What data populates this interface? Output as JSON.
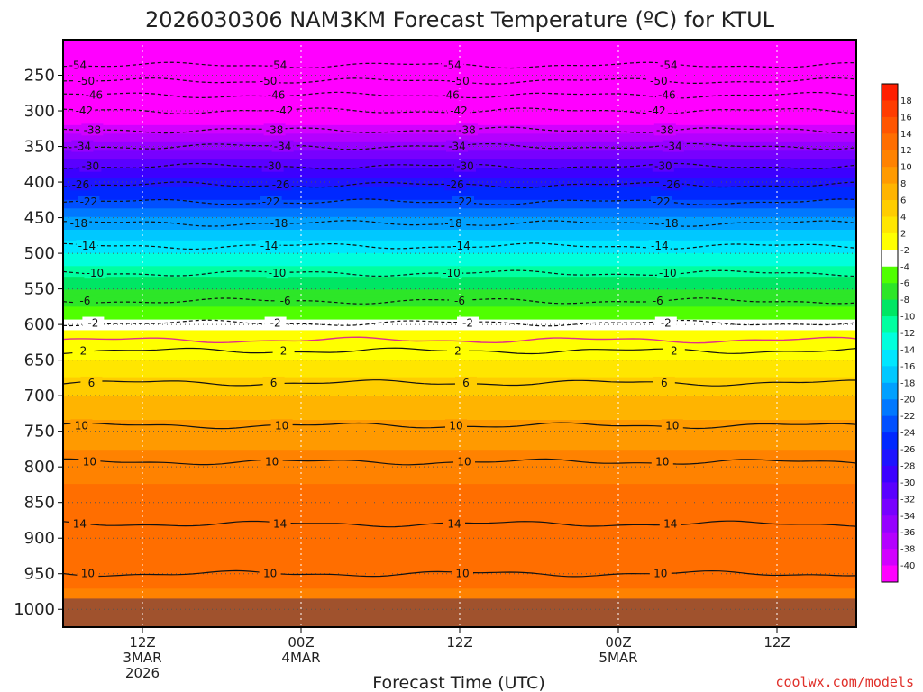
{
  "chart_data": {
    "type": "heatmap",
    "title": "2026030306 NAM3KM Forecast Temperature (ºC) for KTUL",
    "xlabel": "Forecast Time (UTC)",
    "ylabel": "",
    "credit": "coolwx.com/models",
    "y_ticks": [
      "250",
      "300",
      "350",
      "400",
      "450",
      "500",
      "550",
      "600",
      "650",
      "700",
      "750",
      "800",
      "850",
      "900",
      "950",
      "1000"
    ],
    "y_tick_values": [
      250,
      300,
      350,
      400,
      450,
      500,
      550,
      600,
      650,
      700,
      750,
      800,
      850,
      900,
      950,
      1000
    ],
    "y_range_hpa": [
      200,
      1025
    ],
    "x_range_hours": [
      0,
      60
    ],
    "x_ticks": [
      {
        "hour": 6,
        "lines": [
          "12Z",
          "3MAR",
          "2026"
        ]
      },
      {
        "hour": 18,
        "lines": [
          "00Z",
          "4MAR"
        ]
      },
      {
        "hour": 30,
        "lines": [
          "12Z"
        ]
      },
      {
        "hour": 42,
        "lines": [
          "00Z",
          "5MAR"
        ]
      },
      {
        "hour": 54,
        "lines": [
          "12Z"
        ]
      }
    ],
    "colorbar": {
      "labels": [
        "18",
        "16",
        "14",
        "12",
        "10",
        "8",
        "6",
        "4",
        "2",
        "-2",
        "-4",
        "-6",
        "-8",
        "-10",
        "-12",
        "-14",
        "-16",
        "-18",
        "-20",
        "-22",
        "-24",
        "-26",
        "-28",
        "-30",
        "-32",
        "-34",
        "-36",
        "-38",
        "-40"
      ],
      "colors": [
        "#ff1e00",
        "#ff3c00",
        "#ff5500",
        "#ff6e00",
        "#ff8200",
        "#ff9a00",
        "#ffb400",
        "#ffcd00",
        "#ffe600",
        "#ffff00",
        "#ffffff",
        "#50ff00",
        "#2de628",
        "#00e664",
        "#00ffa0",
        "#00ffdc",
        "#00e6ff",
        "#00c8ff",
        "#00a0ff",
        "#0078ff",
        "#0050ff",
        "#0028ff",
        "#1e14ff",
        "#3c00ff",
        "#5a00ff",
        "#7800ff",
        "#9600ff",
        "#b400ff",
        "#d200ff",
        "#ff00ff"
      ]
    },
    "temperature_profile": [
      {
        "pressure": 200,
        "temp": -56
      },
      {
        "pressure": 250,
        "temp": -52
      },
      {
        "pressure": 275,
        "temp": -47
      },
      {
        "pressure": 300,
        "temp": -43
      },
      {
        "pressure": 325,
        "temp": -39
      },
      {
        "pressure": 350,
        "temp": -35
      },
      {
        "pressure": 375,
        "temp": -31
      },
      {
        "pressure": 400,
        "temp": -27
      },
      {
        "pressure": 425,
        "temp": -24
      },
      {
        "pressure": 450,
        "temp": -20
      },
      {
        "pressure": 475,
        "temp": -17
      },
      {
        "pressure": 500,
        "temp": -14
      },
      {
        "pressure": 525,
        "temp": -11
      },
      {
        "pressure": 550,
        "temp": -8
      },
      {
        "pressure": 575,
        "temp": -6
      },
      {
        "pressure": 600,
        "temp": -3
      },
      {
        "pressure": 625,
        "temp": 0
      },
      {
        "pressure": 650,
        "temp": 2
      },
      {
        "pressure": 675,
        "temp": 4
      },
      {
        "pressure": 700,
        "temp": 6
      },
      {
        "pressure": 750,
        "temp": 9
      },
      {
        "pressure": 800,
        "temp": 11
      },
      {
        "pressure": 850,
        "temp": 13
      },
      {
        "pressure": 900,
        "temp": 14
      },
      {
        "pressure": 950,
        "temp": 13
      },
      {
        "pressure": 990,
        "temp": 11
      }
    ],
    "contour_lines": [
      {
        "label": "-54",
        "pressure": 236,
        "style": "dashed"
      },
      {
        "label": "-50",
        "pressure": 258,
        "style": "dashed"
      },
      {
        "label": "-46",
        "pressure": 278,
        "style": "dashed"
      },
      {
        "label": "-42",
        "pressure": 300,
        "style": "dashed"
      },
      {
        "label": "-38",
        "pressure": 327,
        "style": "dashed"
      },
      {
        "label": "-34",
        "pressure": 350,
        "style": "dashed"
      },
      {
        "label": "-30",
        "pressure": 378,
        "style": "dashed"
      },
      {
        "label": "-26",
        "pressure": 404,
        "style": "dashed"
      },
      {
        "label": "-22",
        "pressure": 428,
        "style": "dashed"
      },
      {
        "label": "-18",
        "pressure": 458,
        "style": "dashed"
      },
      {
        "label": "-14",
        "pressure": 490,
        "style": "dashed"
      },
      {
        "label": "-10",
        "pressure": 528,
        "style": "dashed"
      },
      {
        "label": "-6",
        "pressure": 567,
        "style": "dashed"
      },
      {
        "label": "-2",
        "pressure": 598,
        "style": "dashed"
      },
      {
        "label": "2",
        "pressure": 637,
        "style": "solid"
      },
      {
        "label": "6",
        "pressure": 682,
        "style": "solid"
      },
      {
        "label": "10",
        "pressure": 742,
        "style": "solid"
      },
      {
        "label": "10",
        "pressure": 793,
        "style": "solid"
      },
      {
        "label": "14",
        "pressure": 880,
        "style": "solid"
      },
      {
        "label": "10",
        "pressure": 950,
        "style": "solid"
      }
    ],
    "freezing_line": {
      "label": "0",
      "pressure": 622,
      "color": "#e0308c"
    },
    "ground_level_hpa": 985
  }
}
